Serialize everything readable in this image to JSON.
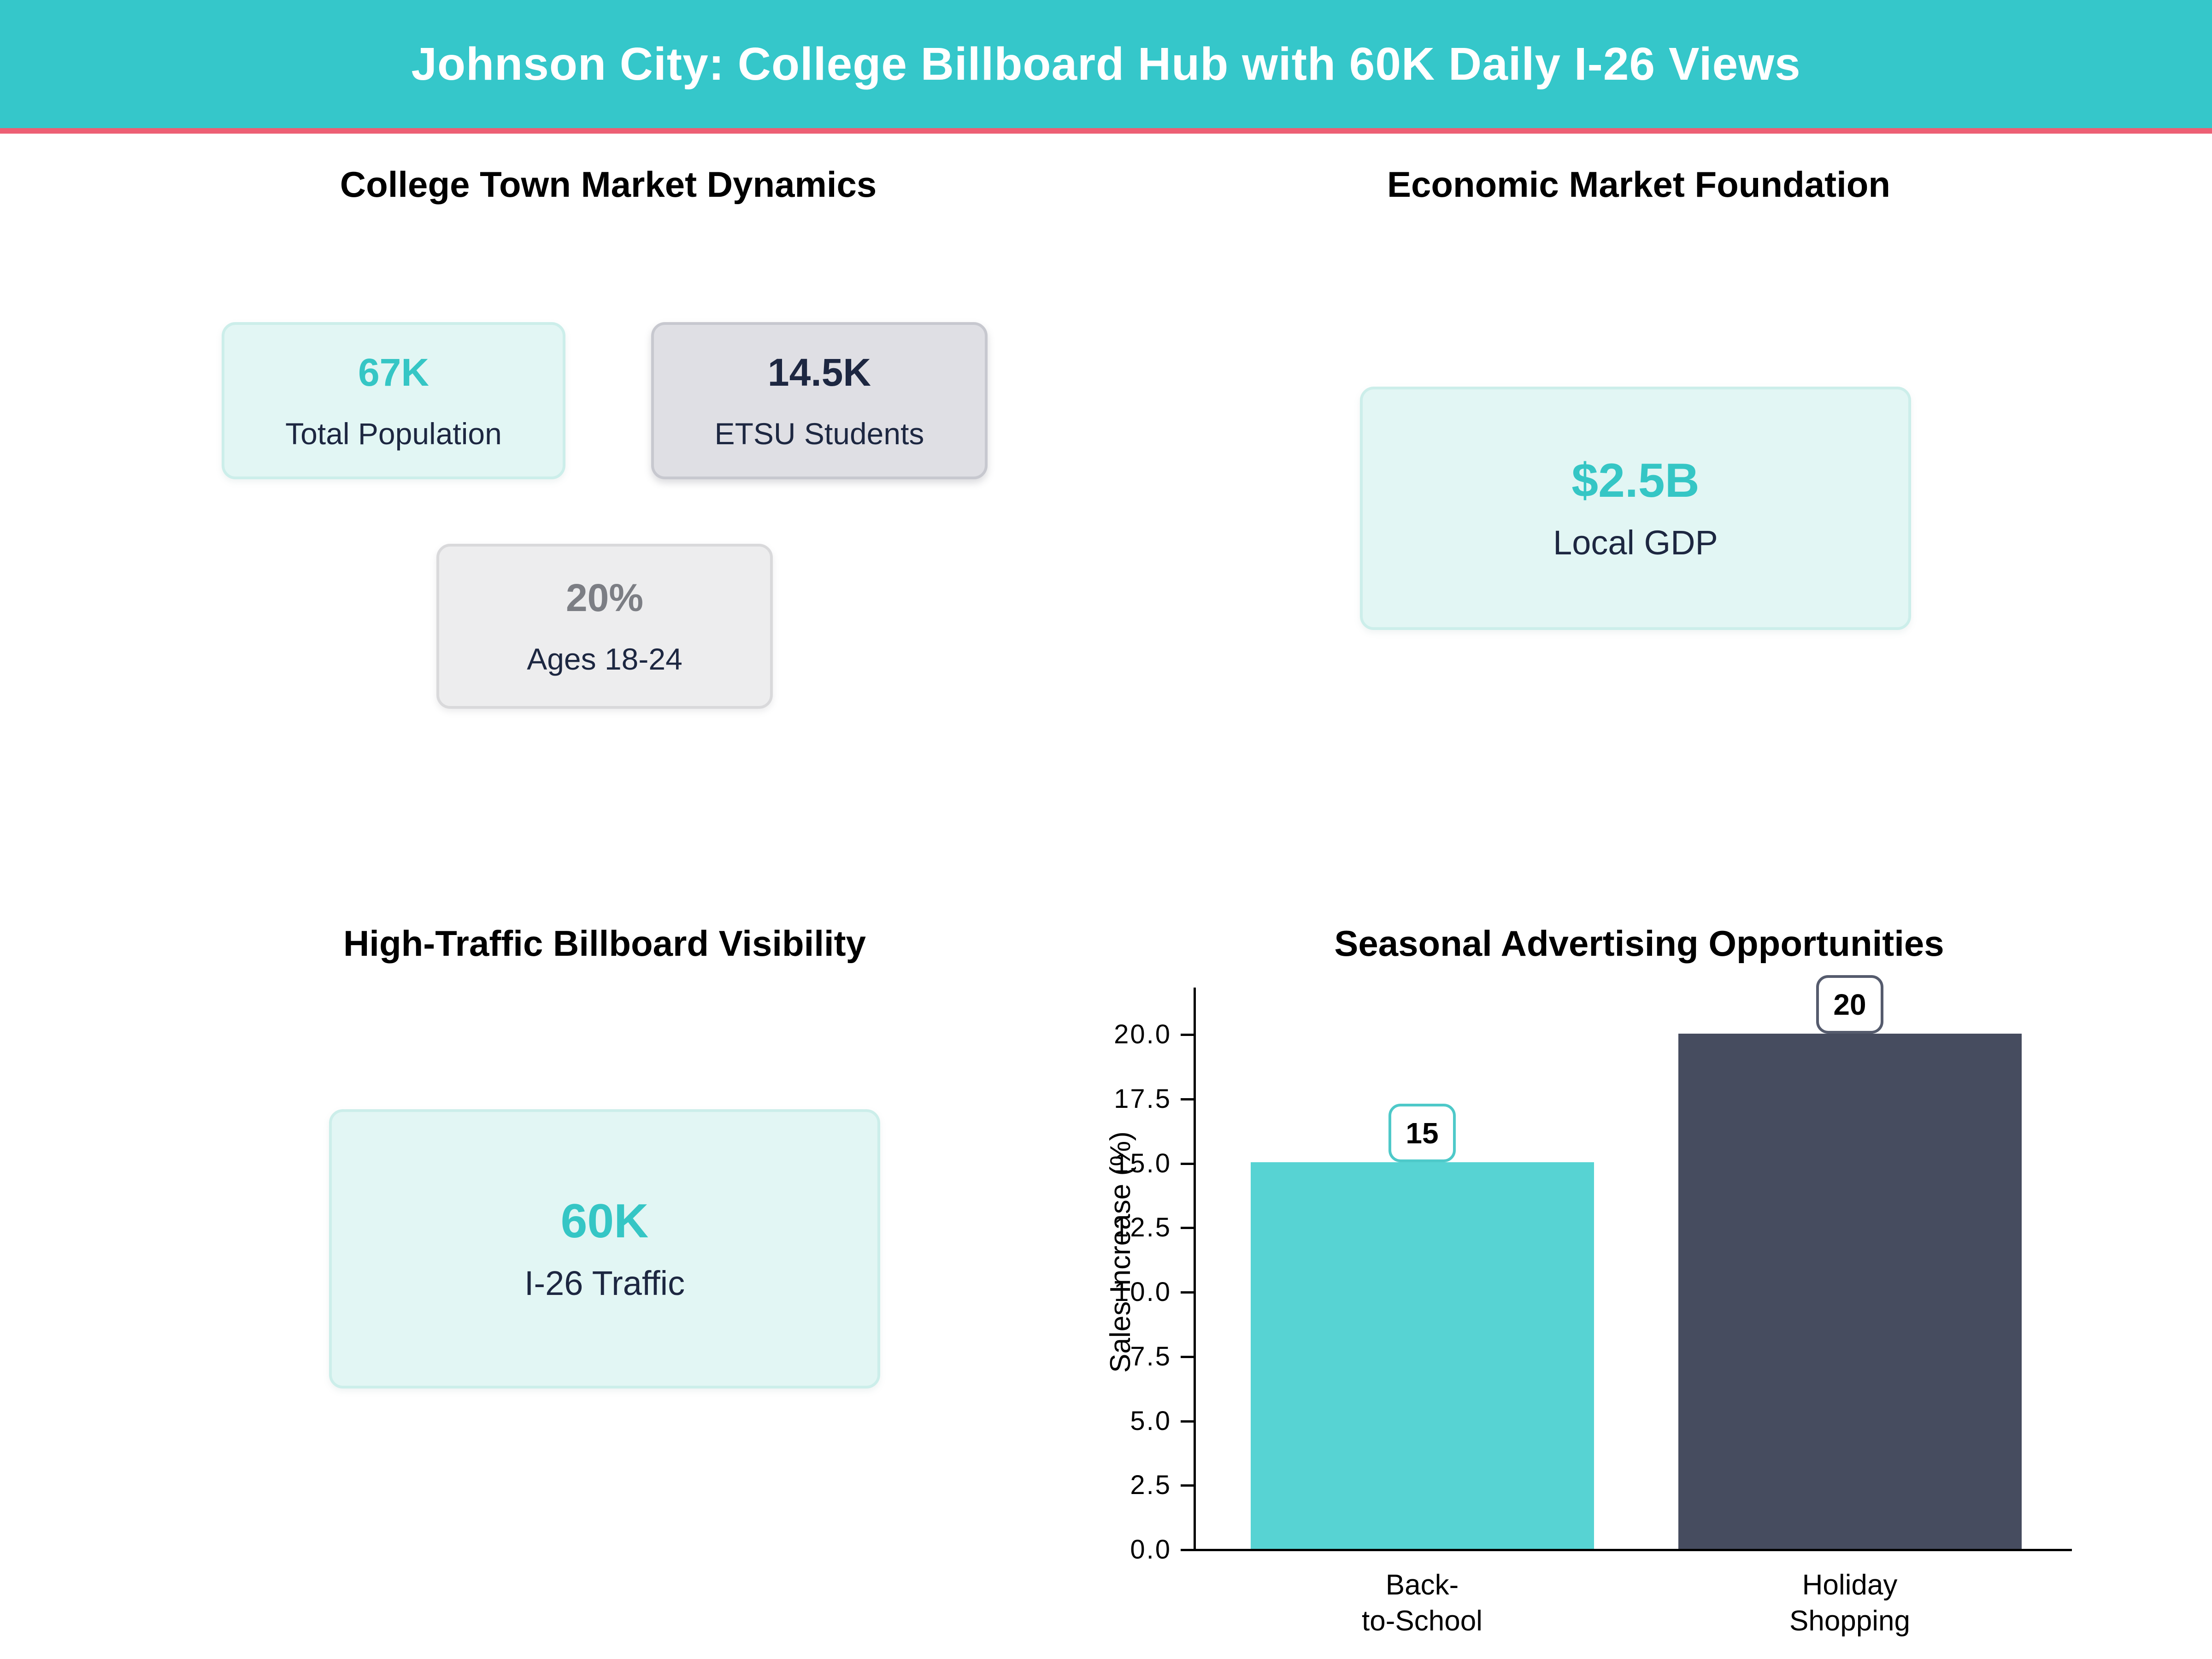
{
  "header": {
    "title": "Johnson City: College Billboard Hub with 60K Daily I-26 Views"
  },
  "palette": {
    "header_background": "#35c7ca",
    "accent_divider_pink": "#ed5f74",
    "teal_value_text": "#35c6c5",
    "navy_text": "#1d2741",
    "gray_value_text": "#7c7e84",
    "mint_card_background": "#e2f6f4",
    "gray_card_background": "#dfdfe4",
    "lightgray_card_background": "#ededee"
  },
  "sections": {
    "market": {
      "title": "College Town Market Dynamics",
      "cards": [
        {
          "value": "67K",
          "label": "Total Population"
        },
        {
          "value": "14.5K",
          "label": "ETSU Students"
        },
        {
          "value": "20%",
          "label": "Ages 18-24"
        }
      ]
    },
    "economic": {
      "title": "Economic Market Foundation",
      "card": {
        "value": "$2.5B",
        "label": "Local GDP"
      }
    },
    "traffic": {
      "title": "High-Traffic Billboard Visibility",
      "card": {
        "value": "60K",
        "label": "I-26 Traffic"
      }
    }
  },
  "chart_data": {
    "type": "bar",
    "title": "Seasonal Advertising Opportunities",
    "categories": [
      "Back-to-School",
      "Holiday Shopping"
    ],
    "category_lines": [
      [
        "Back-",
        "to-School"
      ],
      [
        "Holiday",
        "Shopping"
      ]
    ],
    "values": [
      15,
      20
    ],
    "data_labels": [
      "15",
      "20"
    ],
    "bar_colors": [
      "#57d3d3",
      "#464c5f"
    ],
    "label_border_colors": [
      "#4ec9c9",
      "#555b6d"
    ],
    "xlabel": "",
    "ylabel": "Sales Increase (%)",
    "ylim": [
      0,
      21.8
    ],
    "yticks": [
      0,
      2.5,
      5,
      7.5,
      10,
      12.5,
      15,
      17.5,
      20
    ],
    "ytick_labels": [
      "0.0",
      "2.5",
      "5.0",
      "7.5",
      "10.0",
      "12.5",
      "15.0",
      "17.5",
      "20.0"
    ],
    "grid": false,
    "legend": "none"
  }
}
